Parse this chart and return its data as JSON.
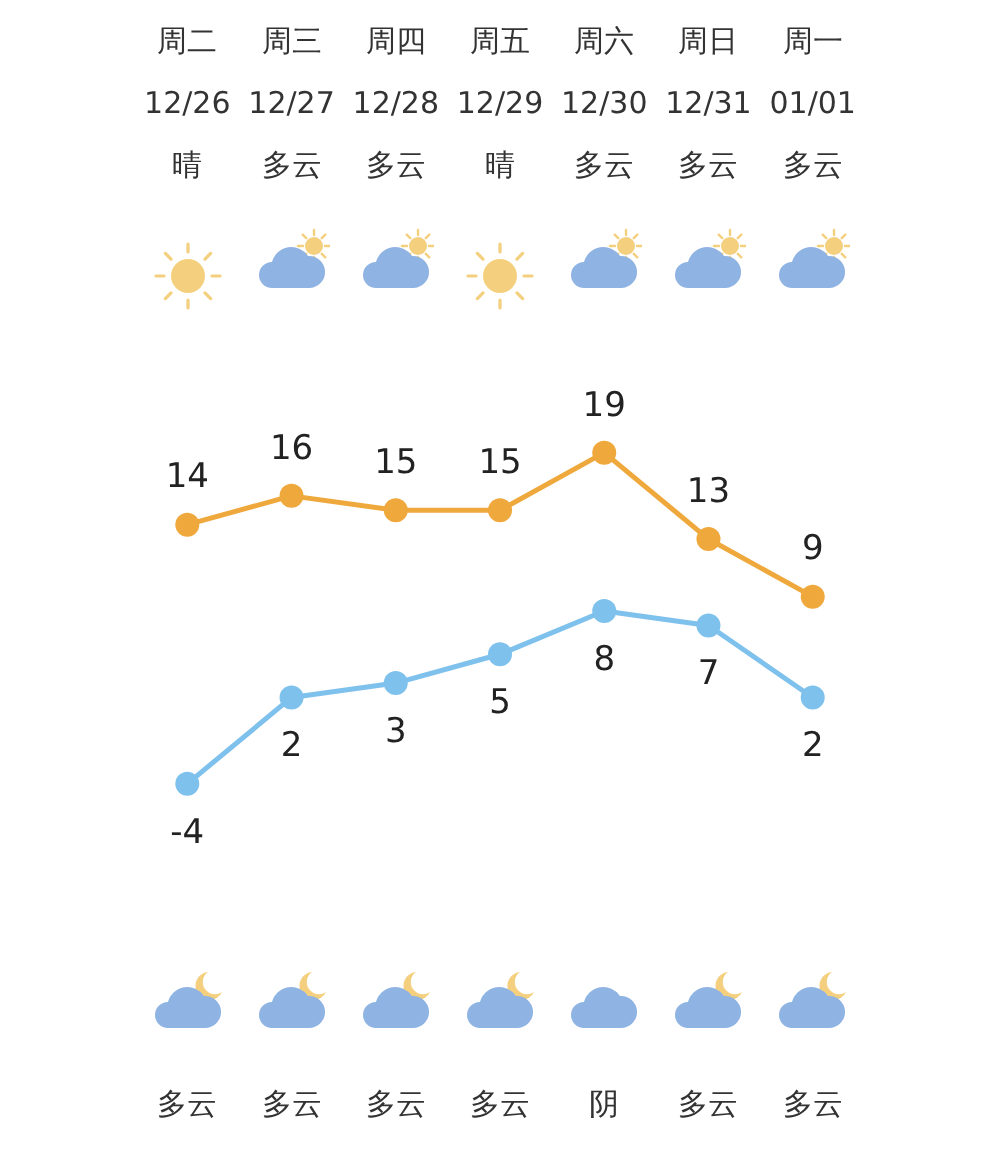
{
  "chart_data": {
    "type": "line",
    "categories": [
      "周二\n12/26\n晴",
      "周三\n12/27\n多云",
      "周四\n12/28\n多云",
      "周五\n12/29\n晴",
      "周六\n12/30\n多云",
      "周日\n12/31\n多云",
      "周一\n01/01\n多云"
    ],
    "series": [
      {
        "color": "#efa83c",
        "values": [
          14,
          16,
          15,
          15,
          19,
          13,
          9
        ]
      },
      {
        "color": "#7ec1ec",
        "values": [
          -4,
          2,
          3,
          5,
          8,
          7,
          2
        ]
      }
    ],
    "data_labels": true,
    "marker": "circle",
    "tick_labels": "x",
    "annotations": [
      "多云",
      "多云",
      "多云",
      "多云",
      "阴",
      "多云",
      "多云"
    ]
  }
}
